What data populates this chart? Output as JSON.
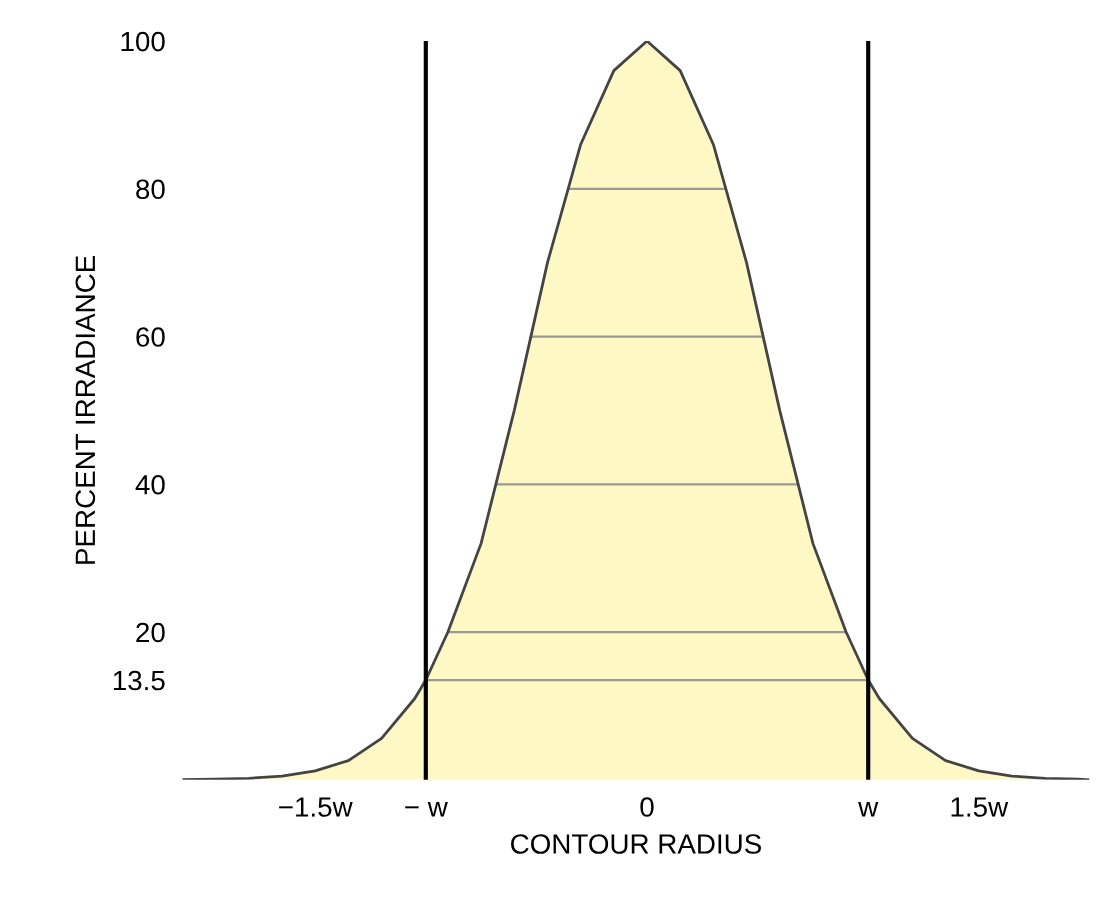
{
  "chart_data": {
    "type": "area",
    "xlabel": "CONTOUR RADIUS",
    "ylabel": "PERCENT IRRADIANCE",
    "x": [
      -2.1,
      -1.95,
      -1.8,
      -1.65,
      -1.5,
      -1.35,
      -1.2,
      -1.05,
      -1.0,
      -0.9,
      -0.75,
      -0.6,
      -0.45,
      -0.3,
      -0.15,
      0,
      0.15,
      0.3,
      0.45,
      0.6,
      0.75,
      0.9,
      1.0,
      1.05,
      1.2,
      1.35,
      1.5,
      1.65,
      1.8,
      1.95,
      2.0
    ],
    "values": [
      0,
      0.1,
      0.2,
      0.5,
      1.2,
      2.6,
      5.6,
      11,
      13.5,
      20,
      32,
      50,
      70,
      86,
      96,
      100,
      96,
      86,
      70,
      50,
      32,
      20,
      13.5,
      11,
      5.6,
      2.6,
      1.2,
      0.5,
      0.2,
      0.1,
      0
    ],
    "color": "#fdf8c4",
    "xlim": [
      -2.1,
      2.0
    ],
    "ylim": [
      0,
      100
    ],
    "xticks": [
      {
        "value": -1.5,
        "label": "−1.5w"
      },
      {
        "value": -1,
        "label": "− w"
      },
      0,
      {
        "value": 1,
        "label": "w"
      },
      {
        "value": 1.5,
        "label": "1.5w"
      }
    ],
    "yticks": [
      13.5,
      20,
      40,
      60,
      80,
      100
    ],
    "grid": "y",
    "ref_lines": [
      {
        "axis": "x",
        "value": -1,
        "color": "#000000"
      },
      {
        "axis": "x",
        "value": 1,
        "color": "#000000"
      }
    ]
  }
}
